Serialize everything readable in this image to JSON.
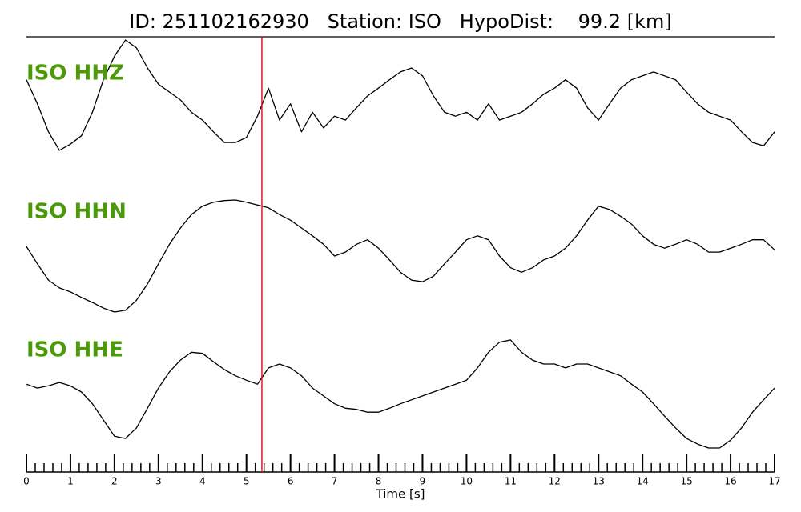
{
  "chart_data": {
    "type": "line",
    "title": "ID: 251102162930   Station: ISO   HypoDist:    99.2 [km]",
    "xlabel": "Time [s]",
    "xlim": [
      0,
      17
    ],
    "xticks": [
      0,
      1,
      2,
      3,
      4,
      5,
      6,
      7,
      8,
      9,
      10,
      11,
      12,
      13,
      14,
      15,
      16,
      17
    ],
    "minor_tick_interval": 0.2,
    "ylim": [
      -1,
      1
    ],
    "label_color": "#4c9a0a",
    "vline": {
      "x": 5.35,
      "color": "#e8141e"
    },
    "x": [
      0,
      0.25,
      0.5,
      0.75,
      1,
      1.25,
      1.5,
      1.75,
      2,
      2.25,
      2.5,
      2.75,
      3,
      3.25,
      3.5,
      3.75,
      4,
      4.25,
      4.5,
      4.75,
      5,
      5.25,
      5.5,
      5.75,
      6,
      6.25,
      6.5,
      6.75,
      7,
      7.25,
      7.5,
      7.75,
      8,
      8.25,
      8.5,
      8.75,
      9,
      9.25,
      9.5,
      9.75,
      10,
      10.25,
      10.5,
      10.75,
      11,
      11.25,
      11.5,
      11.75,
      12,
      12.25,
      12.5,
      12.75,
      13,
      13.25,
      13.5,
      13.75,
      14,
      14.25,
      14.5,
      14.75,
      15,
      15.25,
      15.5,
      15.75,
      16,
      16.25,
      16.5,
      16.75,
      17
    ],
    "series": [
      {
        "name": "ISO HHZ",
        "color": "#000000",
        "values": [
          0.29,
          -0.14,
          -0.64,
          -0.97,
          -0.86,
          -0.71,
          -0.29,
          0.29,
          0.71,
          1.0,
          0.86,
          0.5,
          0.21,
          0.07,
          -0.07,
          -0.29,
          -0.43,
          -0.64,
          -0.83,
          -0.83,
          -0.74,
          -0.36,
          0.14,
          -0.43,
          -0.14,
          -0.64,
          -0.29,
          -0.57,
          -0.36,
          -0.43,
          -0.21,
          0,
          0.14,
          0.29,
          0.43,
          0.5,
          0.36,
          0,
          -0.29,
          -0.36,
          -0.29,
          -0.43,
          -0.14,
          -0.43,
          -0.36,
          -0.29,
          -0.14,
          0.03,
          0.14,
          0.29,
          0.14,
          -0.21,
          -0.43,
          -0.14,
          0.14,
          0.29,
          0.36,
          0.43,
          0.36,
          0.29,
          0.07,
          -0.14,
          -0.29,
          -0.36,
          -0.43,
          -0.64,
          -0.83,
          -0.89,
          -0.64
        ]
      },
      {
        "name": "ISO HHN",
        "color": "#000000",
        "values": [
          0.17,
          -0.14,
          -0.43,
          -0.57,
          -0.64,
          -0.74,
          -0.83,
          -0.93,
          -1.0,
          -0.97,
          -0.79,
          -0.5,
          -0.14,
          0.21,
          0.5,
          0.74,
          0.89,
          0.96,
          0.99,
          1.0,
          0.96,
          0.91,
          0.86,
          0.74,
          0.64,
          0.5,
          0.36,
          0.21,
          0,
          0.07,
          0.21,
          0.29,
          0.14,
          -0.07,
          -0.29,
          -0.43,
          -0.46,
          -0.36,
          -0.14,
          0.07,
          0.29,
          0.36,
          0.29,
          0,
          -0.21,
          -0.29,
          -0.21,
          -0.07,
          0,
          0.14,
          0.36,
          0.64,
          0.89,
          0.83,
          0.71,
          0.57,
          0.36,
          0.21,
          0.14,
          0.21,
          0.29,
          0.21,
          0.07,
          0.07,
          0.14,
          0.21,
          0.29,
          0.29,
          0.11
        ]
      },
      {
        "name": "ISO HHE",
        "color": "#000000",
        "values": [
          0.14,
          0.07,
          0.11,
          0.17,
          0.11,
          0,
          -0.21,
          -0.5,
          -0.79,
          -0.83,
          -0.64,
          -0.29,
          0.07,
          0.36,
          0.57,
          0.71,
          0.69,
          0.54,
          0.4,
          0.29,
          0.21,
          0.14,
          0.43,
          0.5,
          0.43,
          0.29,
          0.07,
          -0.07,
          -0.21,
          -0.29,
          -0.31,
          -0.36,
          -0.36,
          -0.29,
          -0.21,
          -0.14,
          -0.07,
          0,
          0.07,
          0.14,
          0.21,
          0.43,
          0.71,
          0.89,
          0.93,
          0.71,
          0.57,
          0.5,
          0.5,
          0.43,
          0.5,
          0.5,
          0.43,
          0.36,
          0.29,
          0.14,
          0,
          -0.21,
          -0.43,
          -0.64,
          -0.83,
          -0.93,
          -1.0,
          -1.0,
          -0.86,
          -0.64,
          -0.36,
          -0.14,
          0.07
        ]
      }
    ]
  }
}
